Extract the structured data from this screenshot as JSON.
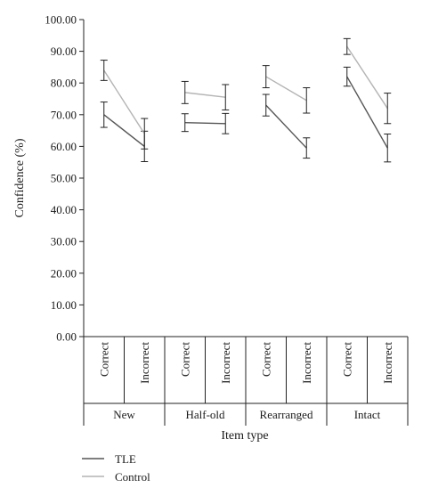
{
  "chart_data": {
    "type": "line",
    "ylabel": "Confidence (%)",
    "xlabel": "Item type",
    "ylim": [
      0,
      100
    ],
    "yticks": [
      "0.00",
      "10.00",
      "20.00",
      "30.00",
      "40.00",
      "50.00",
      "60.00",
      "70.00",
      "80.00",
      "90.00",
      "100.00"
    ],
    "error_bars": true,
    "groups": [
      {
        "name": "New",
        "conditions": [
          "Correct",
          "Incorrect"
        ]
      },
      {
        "name": "Half-old",
        "conditions": [
          "Correct",
          "Incorrect"
        ]
      },
      {
        "name": "Rearranged",
        "conditions": [
          "Correct",
          "Incorrect"
        ]
      },
      {
        "name": "Intact",
        "conditions": [
          "Correct",
          "Incorrect"
        ]
      }
    ],
    "series": [
      {
        "name": "TLE",
        "color": "#555555",
        "values": [
          [
            70.0,
            60.0
          ],
          [
            67.5,
            67.2
          ],
          [
            73.0,
            59.5
          ],
          [
            82.0,
            59.5
          ]
        ],
        "errors": [
          [
            4.0,
            4.8
          ],
          [
            2.8,
            3.2
          ],
          [
            3.4,
            3.2
          ],
          [
            3.0,
            4.4
          ]
        ]
      },
      {
        "name": "Control",
        "color": "#b4b4b4",
        "values": [
          [
            84.0,
            64.0
          ],
          [
            77.0,
            75.5
          ],
          [
            82.0,
            74.5
          ],
          [
            91.5,
            72.0
          ]
        ],
        "errors": [
          [
            3.2,
            4.8
          ],
          [
            3.5,
            4.0
          ],
          [
            3.5,
            4.0
          ],
          [
            2.5,
            4.8
          ]
        ]
      }
    ],
    "legend": "bottom-left"
  }
}
